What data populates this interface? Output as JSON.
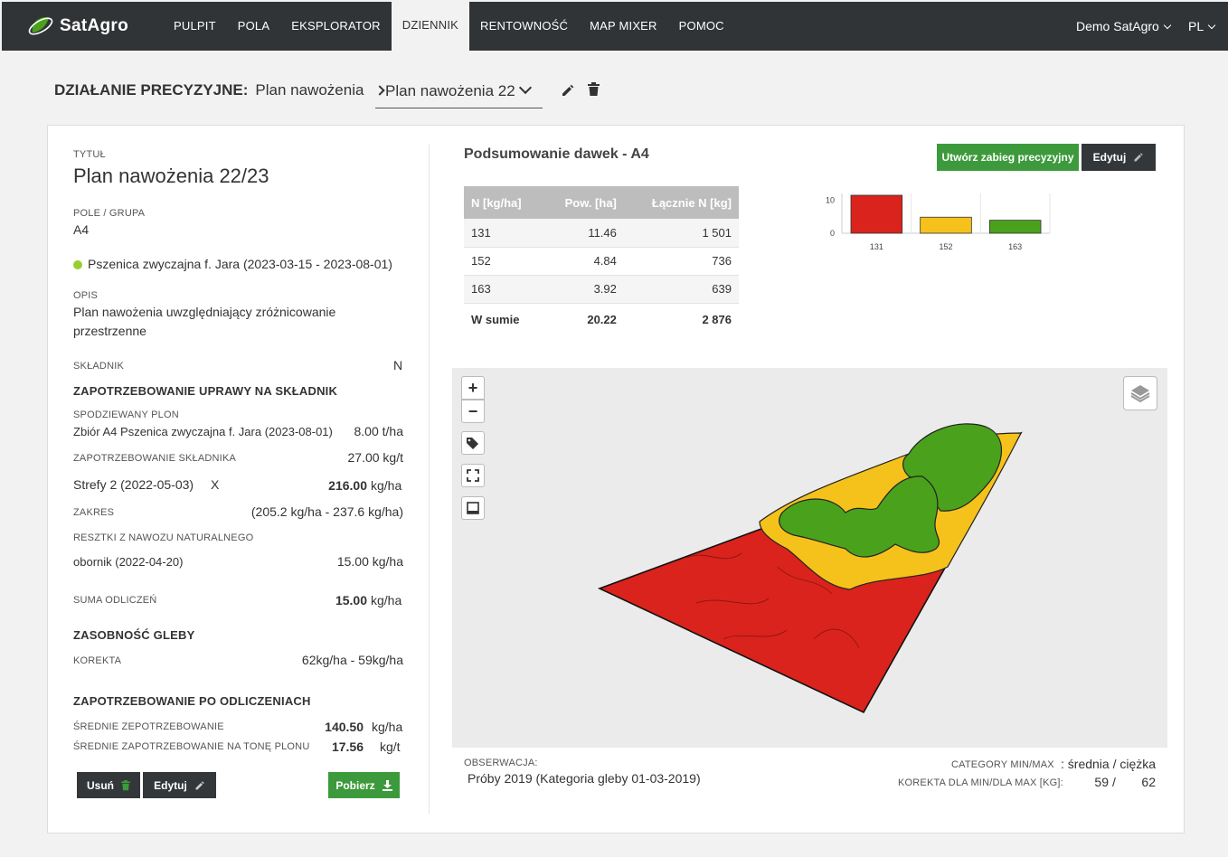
{
  "app": {
    "logo": "SatAgro"
  },
  "nav": {
    "items": [
      "PULPIT",
      "POLA",
      "EKSPLORATOR",
      "DZIENNIK",
      "RENTOWNOŚĆ",
      "MAP MIXER",
      "POMOC"
    ],
    "active": "DZIENNIK",
    "user": "Demo SatAgro",
    "lang": "PL"
  },
  "breadcrumb": {
    "section": "DZIAŁANIE PRECYZYJNE:",
    "category": "Plan nawożenia",
    "selected": "Plan nawożenia 22"
  },
  "details": {
    "title_label": "TYTUŁ",
    "title": "Plan nawożenia 22/23",
    "field_label": "POLE / GRUPA",
    "field": "A4",
    "crop": "Pszenica zwyczajna f. Jara (2023-03-15 - 2023-08-01)",
    "desc_label": "OPIS",
    "desc_line1": "Plan nawożenia uwzględniający zróżnicowanie",
    "desc_line2": "przestrzenne",
    "nutrient_label": "SKŁADNIK",
    "nutrient": "N",
    "demand_heading": "ZAPOTRZEBOWANIE UPRAWY NA SKŁADNIK",
    "yield_label": "SPODZIEWANY PLON",
    "yield_source": "Zbiór A4 Pszenica zwyczajna f. Jara (2023-08-01)",
    "yield_value": "8.00 t/ha",
    "need_label": "ZAPOTRZEBOWANIE SKŁADNIKA",
    "need_value": "27.00 kg/t",
    "zones": "Strefy 2 (2022-05-03)",
    "zones_x": "X",
    "zones_value": "216.00",
    "zones_unit": "kg/ha",
    "range_label": "ZAKRES",
    "range_value": "(205.2 kg/ha - 237.6 kg/ha)",
    "manure_label": "RESZTKI Z NAWOZU NATURALNEGO",
    "manure": "obornik (2022-04-20)",
    "manure_value": "15.00 kg/ha",
    "deduct_label": "SUMA ODLICZEŃ",
    "deduct_value": "15.00",
    "deduct_unit": "kg/ha",
    "soil_heading": "ZASOBNOŚĆ GLEBY",
    "corr_label": "KOREKTA",
    "corr_value": "62kg/ha - 59kg/ha",
    "after_heading": "ZAPOTRZEBOWANIE PO ODLICZENIACH",
    "avg_label": "ŚREDNIE ZEPOTRZEBOWANIE",
    "avg_value": "140.50",
    "avg_unit": "kg/ha",
    "avg_ton_label": "ŚREDNIE ZAPOTRZEBOWANIE NA TONĘ PLONU",
    "avg_ton_value": "17.56",
    "avg_ton_unit": "kg/t"
  },
  "buttons": {
    "delete": "Usuń",
    "edit": "Edytuj",
    "download": "Pobierz",
    "create": "Utwórz zabieg precyzyjny",
    "edit2": "Edytuj"
  },
  "summary": {
    "title": "Podsumowanie dawek - A4",
    "headers": [
      "N [kg/ha]",
      "Pow. [ha]",
      "Łącznie N [kg]"
    ],
    "rows": [
      [
        "131",
        "11.46",
        "1 501"
      ],
      [
        "152",
        "4.84",
        "736"
      ],
      [
        "163",
        "3.92",
        "639"
      ]
    ],
    "total": [
      "W sumie",
      "20.22",
      "2 876"
    ]
  },
  "chart_data": {
    "type": "bar",
    "categories": [
      "131",
      "152",
      "163"
    ],
    "values": [
      11.46,
      4.84,
      3.92
    ],
    "colors": [
      "#d9231c",
      "#f5c21b",
      "#4aa11c"
    ],
    "ylim": [
      0,
      12
    ],
    "yticks": [
      "0",
      "10"
    ],
    "grid": true
  },
  "observation": {
    "label": "OBSERWACJA:",
    "value": "Próby 2019 (Kategoria gleby 01-03-2019)",
    "cat_label": "CATEGORY MIN/MAX",
    "cat_min": "średnia",
    "cat_sep": "/",
    "cat_max": "ciężka",
    "corr_label": "KOREKTA DLA MIN/DLA MAX [kg]:",
    "corr_min": "59",
    "corr_sep": "/",
    "corr_max": "62"
  },
  "map_controls": {
    "zoom_in": "+",
    "zoom_out": "−"
  },
  "colors": {
    "red": "#d9231c",
    "yellow": "#f5c21b",
    "green": "#4aa11c",
    "dark": "#33373a",
    "accent_green": "#3d9a3c"
  }
}
